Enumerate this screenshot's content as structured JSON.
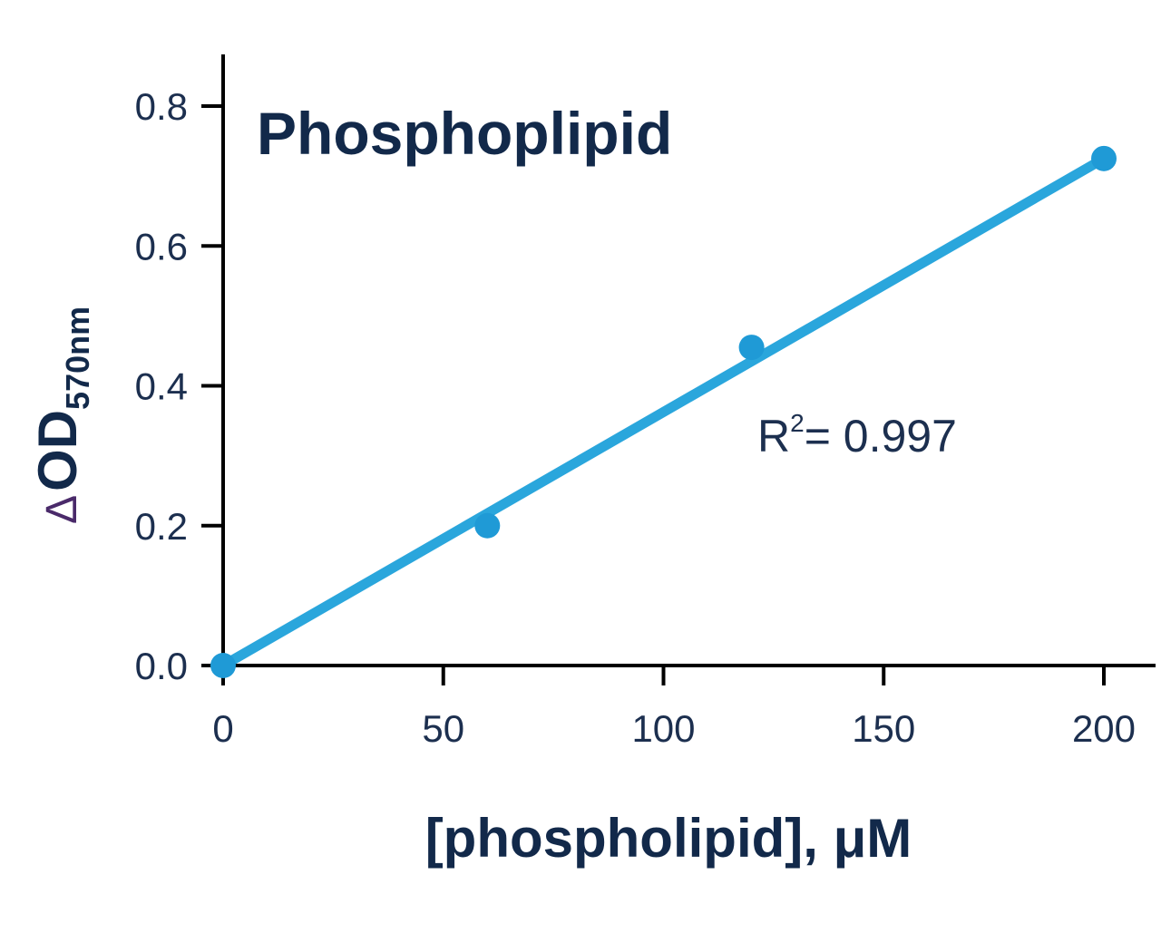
{
  "chart_data": {
    "type": "scatter",
    "title": "Phosphoplipid",
    "xlabel": "[phospholipid], μM",
    "ylabel": {
      "delta": "Δ",
      "main": "OD",
      "subscript": "570nm"
    },
    "xlim": [
      0,
      210
    ],
    "ylim": [
      0,
      0.88
    ],
    "x_ticks": [
      0,
      50,
      100,
      150,
      200
    ],
    "x_tick_labels": [
      "0",
      "50",
      "100",
      "150",
      "200"
    ],
    "y_ticks": [
      0.0,
      0.2,
      0.4,
      0.6,
      0.8
    ],
    "y_tick_labels": [
      "0.0",
      "0.2",
      "0.4",
      "0.6",
      "0.8"
    ],
    "series": [
      {
        "x": [
          0,
          60,
          120,
          200
        ],
        "y": [
          0.0,
          0.2,
          0.455,
          0.725
        ],
        "color": "#1f9ad6"
      }
    ],
    "fit_line": {
      "x": [
        0,
        200
      ],
      "y": [
        0.0,
        0.725
      ],
      "color": "#2aa6dc"
    },
    "annotation": {
      "r_label": "R",
      "r_sup": "2",
      "r_value": "= 0.997"
    },
    "grid": false,
    "legend": "none"
  }
}
